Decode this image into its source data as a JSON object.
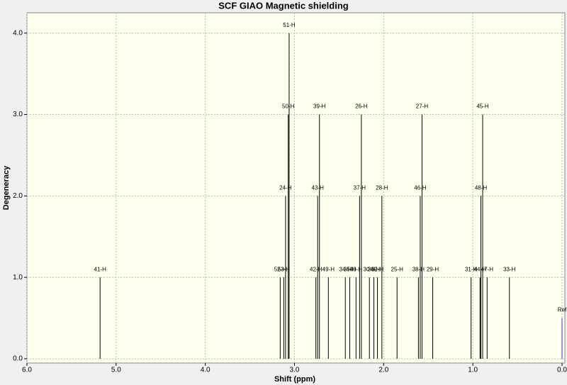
{
  "chart_data": {
    "type": "stick",
    "title": "SCF GIAO Magnetic shielding",
    "xlabel": "Shift (ppm)",
    "ylabel": "Degeneracy",
    "xlim": [
      6.0,
      0.0
    ],
    "ylim": [
      0,
      4.25
    ],
    "xticks": [
      {
        "value": 6,
        "label": "6.0"
      },
      {
        "value": 5,
        "label": "5.0"
      },
      {
        "value": 4,
        "label": "4.0"
      },
      {
        "value": 3,
        "label": "3.0"
      },
      {
        "value": 2,
        "label": "2.0"
      },
      {
        "value": 1,
        "label": "1.0"
      },
      {
        "value": 0,
        "label": "0.0"
      }
    ],
    "yticks": [
      {
        "value": 0,
        "label": "0.0"
      },
      {
        "value": 1,
        "label": "1.0"
      },
      {
        "value": 2,
        "label": "2.0"
      },
      {
        "value": 3,
        "label": "3.0"
      },
      {
        "value": 4,
        "label": "4.0"
      }
    ],
    "grid": true,
    "labels": [
      "41-H",
      "52-H",
      "53-H",
      "24-H",
      "50-H",
      "51-H",
      "42-H",
      "43-H",
      "39-H",
      "49-H",
      "34-H",
      "35-H",
      "40-H",
      "37-H",
      "26-H",
      "30-H",
      "36-H",
      "32-H",
      "28-H",
      "25-H",
      "38-H",
      "46-H",
      "27-H",
      "29-H",
      "31-H",
      "44-H",
      "48-H",
      "45-H",
      "47-H",
      "33-H",
      "Ref"
    ],
    "x": [
      5.18,
      3.16,
      3.12,
      3.1,
      3.07,
      3.06,
      2.76,
      2.74,
      2.72,
      2.62,
      2.43,
      2.38,
      2.31,
      2.27,
      2.25,
      2.16,
      2.11,
      2.07,
      2.02,
      1.85,
      1.61,
      1.59,
      1.57,
      1.45,
      1.02,
      0.92,
      0.91,
      0.89,
      0.84,
      0.59,
      0.0
    ],
    "values": [
      1,
      1,
      1,
      2,
      3,
      4,
      1,
      2,
      3,
      1,
      1,
      1,
      1,
      2,
      3,
      1,
      1,
      1,
      2,
      1,
      1,
      2,
      3,
      1,
      1,
      1,
      2,
      3,
      1,
      1,
      0.5
    ],
    "colors": [
      "#000000",
      "#000000",
      "#000000",
      "#000000",
      "#000000",
      "#000000",
      "#000000",
      "#000000",
      "#000000",
      "#000000",
      "#000000",
      "#000000",
      "#000000",
      "#000000",
      "#000000",
      "#000000",
      "#000000",
      "#000000",
      "#000000",
      "#000000",
      "#000000",
      "#000000",
      "#000000",
      "#000000",
      "#000000",
      "#000000",
      "#000000",
      "#000000",
      "#000000",
      "#000000",
      "#3030d0"
    ]
  }
}
